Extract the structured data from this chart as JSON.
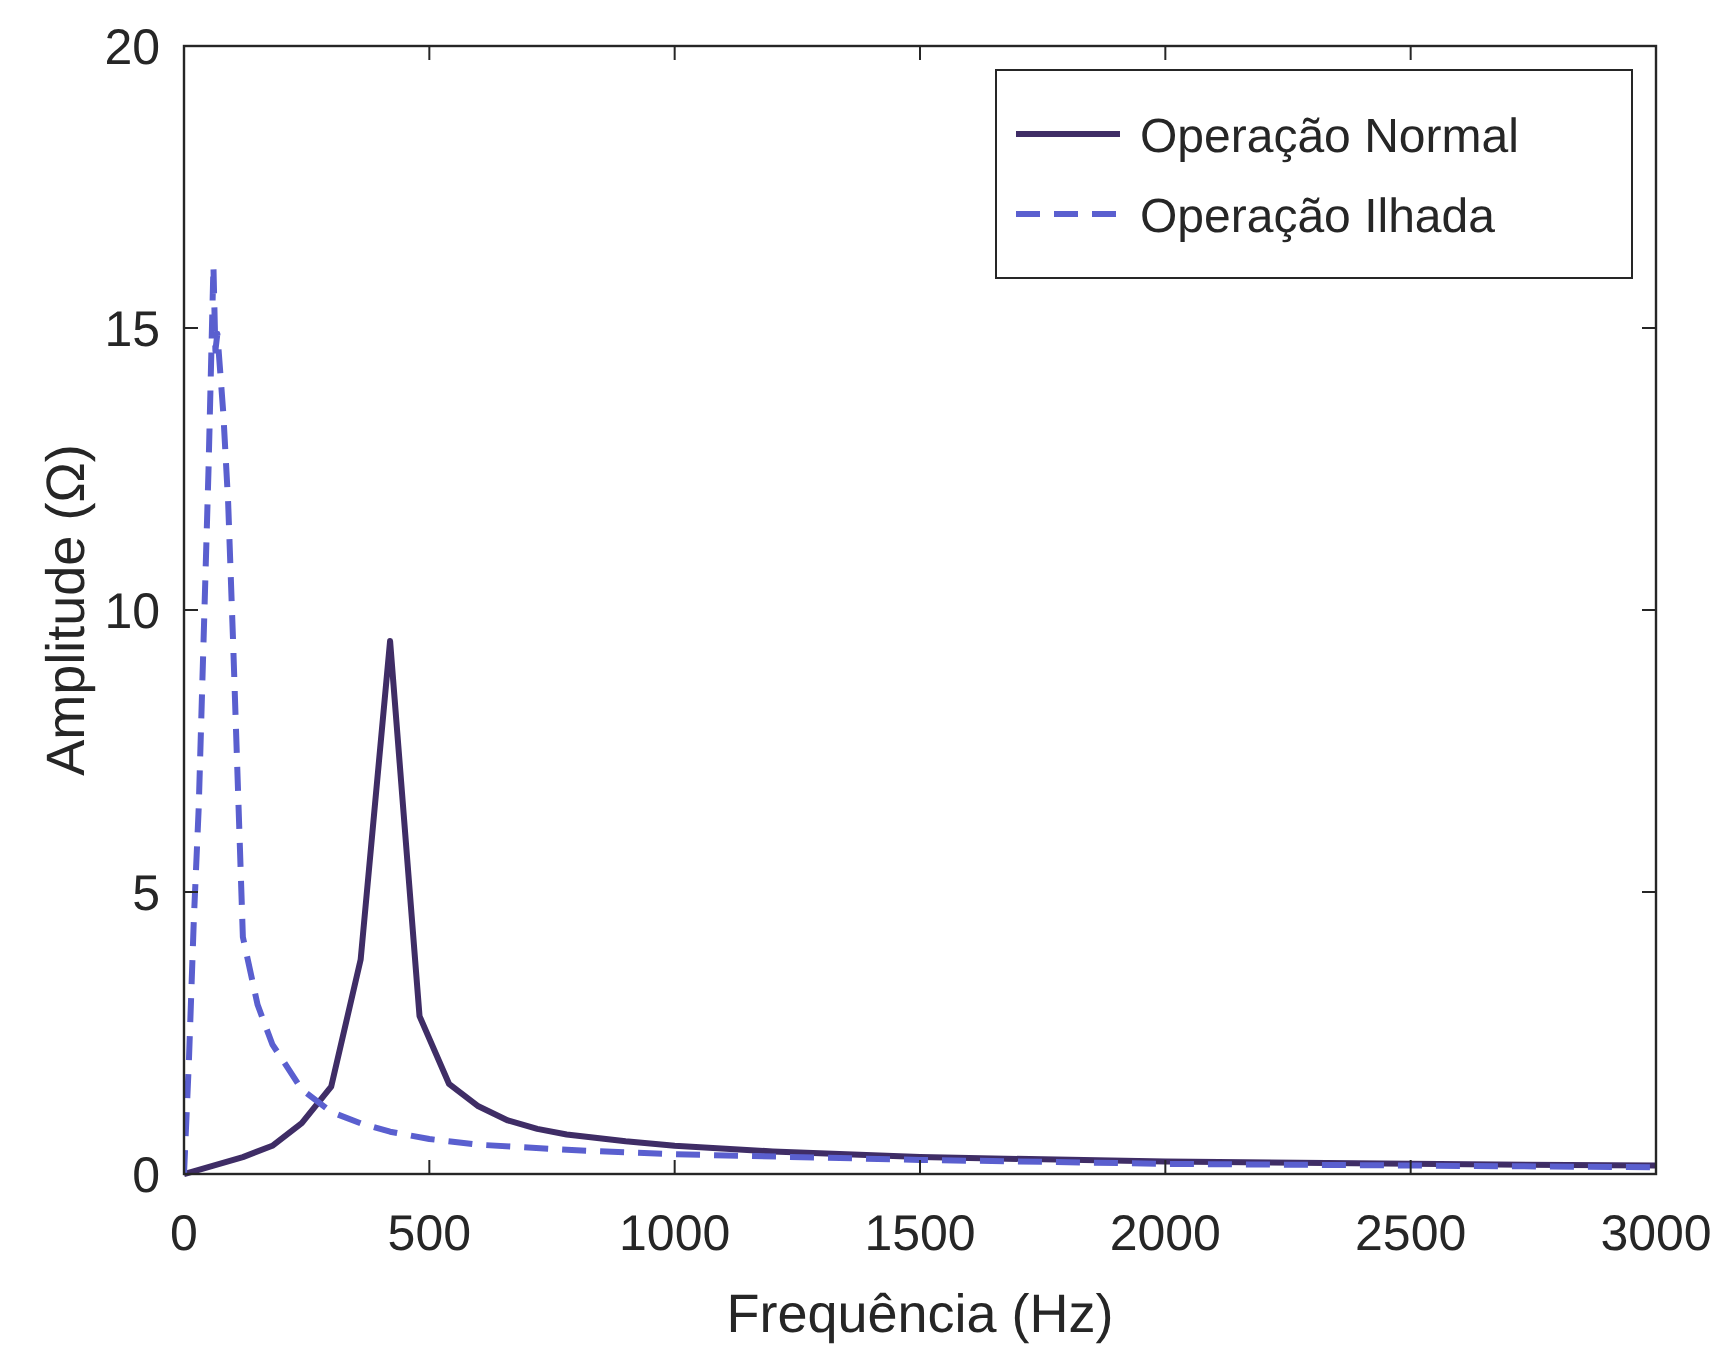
{
  "chart_data": {
    "type": "line",
    "xlabel": "Frequência (Hz)",
    "ylabel": "Amplitude (Ω)",
    "xlim": [
      0,
      3000
    ],
    "xticks": [
      0,
      500,
      1000,
      1500,
      2000,
      2500,
      3000
    ],
    "ylim": [
      0,
      20
    ],
    "yticks": [
      0,
      5,
      10,
      15,
      20
    ],
    "grid": false,
    "legend": "top right",
    "series": [
      {
        "name": "Operação Normal",
        "color": "#3f2d66",
        "line_style": "solid",
        "x": [
          0,
          60,
          120,
          180,
          240,
          300,
          360,
          420,
          480,
          540,
          600,
          660,
          720,
          780,
          900,
          1000,
          1200,
          1500,
          2000,
          2500,
          3000
        ],
        "values": [
          0,
          0.15,
          0.3,
          0.5,
          0.9,
          1.55,
          3.8,
          9.45,
          2.8,
          1.6,
          1.2,
          0.95,
          0.8,
          0.7,
          0.58,
          0.5,
          0.4,
          0.3,
          0.22,
          0.18,
          0.15
        ]
      },
      {
        "name": "Operação Ilhada",
        "color": "#5a5fcf",
        "line_style": "dashed",
        "x": [
          0,
          10,
          20,
          30,
          40,
          50,
          60,
          64,
          68,
          80,
          90,
          100,
          120,
          150,
          180,
          240,
          300,
          360,
          420,
          500,
          600,
          800,
          1000,
          1500,
          2000,
          2500,
          3000
        ],
        "values": [
          0,
          2,
          4.5,
          6.5,
          9.5,
          12.5,
          16.1,
          14.6,
          14.9,
          13.5,
          11.9,
          9.45,
          4.2,
          3,
          2.3,
          1.5,
          1.1,
          0.9,
          0.75,
          0.62,
          0.52,
          0.42,
          0.35,
          0.25,
          0.18,
          0.15,
          0.12
        ]
      }
    ]
  }
}
